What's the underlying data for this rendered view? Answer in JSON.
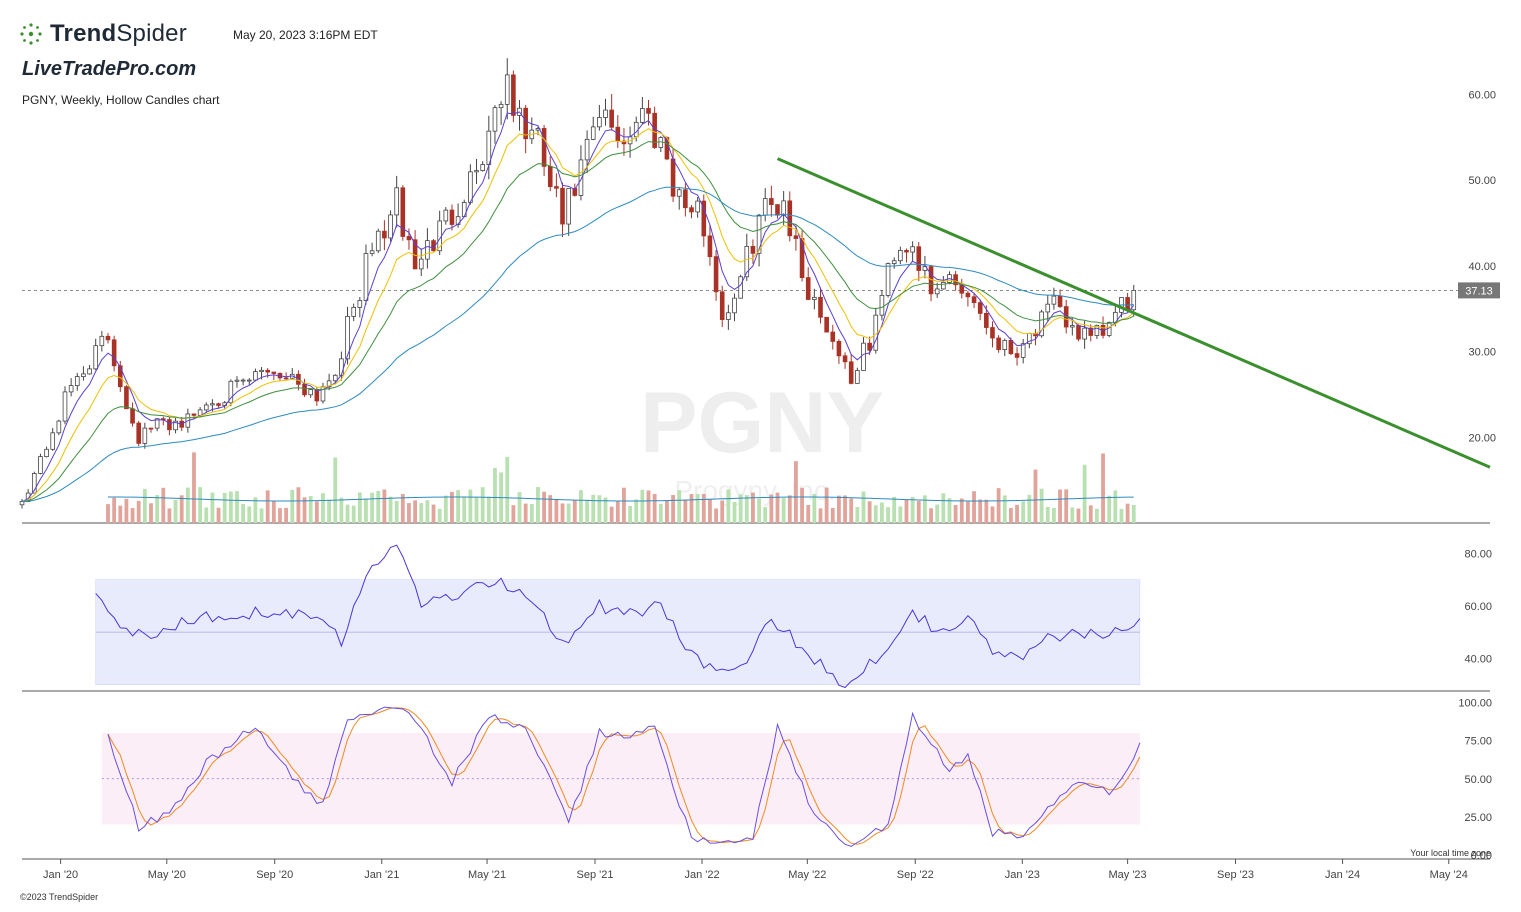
{
  "header": {
    "brand_bold": "Trend",
    "brand_light": "Spider",
    "timestamp": "May 20, 2023 3:16PM EDT",
    "watermark_site": "LiveTradePro.com",
    "chart_desc": "PGNY, Weekly, Hollow Candles chart"
  },
  "footer": {
    "copyright": "©2023 TrendSpider",
    "tz_note": "Your local time zone"
  },
  "colors": {
    "up": "#b8e0b0",
    "down": "#a93226",
    "ema_fast": "#5b3fd6",
    "ema_mid": "#f0c000",
    "ema_slow": "#3f8f3f",
    "sma_long": "#2e8bc0",
    "trendline": "#3c8f2e",
    "rsi_band": "#e8ebfb",
    "stoch_band": "#fbeef7",
    "stoch_k": "#6a4fe0",
    "stoch_d": "#f08a24"
  },
  "chart_data": {
    "type": "candlestick",
    "symbol": "PGNY",
    "watermark_symbol": "PGNY",
    "watermark_name": "Progyny, Inc.",
    "interval": "Weekly",
    "last_price": 37.13,
    "last_price_label": "37.13",
    "price_axis": {
      "range": [
        10,
        67.5
      ],
      "ticks": [
        60,
        50,
        40,
        30,
        20
      ],
      "tick_labels": [
        "60.00",
        "50.00",
        "40.00",
        "30.00",
        "20.00"
      ]
    },
    "rsi_axis": {
      "range": [
        28,
        87
      ],
      "ticks": [
        80,
        60,
        40
      ],
      "tick_labels": [
        "80.00",
        "60.00",
        "40.00"
      ],
      "band": [
        30,
        70
      ],
      "mid": 50
    },
    "stoch_axis": {
      "range": [
        -2,
        103
      ],
      "ticks": [
        100,
        75,
        50,
        25,
        0
      ],
      "tick_labels": [
        "100.00",
        "75.00",
        "50.00",
        "25.00",
        "0.00"
      ],
      "band": [
        20,
        80
      ],
      "mid": 50
    },
    "time_axis": {
      "range": [
        "2019-11-18",
        "2024-06-17"
      ],
      "ticks": [
        "2020-01-01",
        "2020-05-01",
        "2020-09-01",
        "2021-01-01",
        "2021-05-01",
        "2021-09-01",
        "2022-01-01",
        "2022-05-01",
        "2022-09-01",
        "2023-01-01",
        "2023-05-01",
        "2023-09-01",
        "2024-01-01",
        "2024-05-01"
      ],
      "tick_labels": [
        "Jan '20",
        "May '20",
        "Sep '20",
        "Jan '21",
        "May '21",
        "Sep '21",
        "Jan '22",
        "May '22",
        "Sep '22",
        "Jan '23",
        "May '23",
        "Sep '23",
        "Jan '24",
        "May '24"
      ]
    },
    "trendline": {
      "from": [
        "2022-03-28",
        52.5
      ],
      "to": [
        "2024-06-17",
        16.5
      ]
    },
    "weekly_close_anchors": [
      [
        "2019-11-18",
        12.5
      ],
      [
        "2019-12-16",
        19
      ],
      [
        "2020-01-13",
        26
      ],
      [
        "2020-02-03",
        29
      ],
      [
        "2020-02-24",
        31.5
      ],
      [
        "2020-03-16",
        24
      ],
      [
        "2020-03-30",
        20
      ],
      [
        "2020-04-20",
        21.5
      ],
      [
        "2020-05-25",
        22
      ],
      [
        "2020-06-22",
        24.5
      ],
      [
        "2020-07-27",
        26
      ],
      [
        "2020-08-24",
        28
      ],
      [
        "2020-09-21",
        27
      ],
      [
        "2020-10-19",
        25
      ],
      [
        "2020-11-09",
        28
      ],
      [
        "2020-11-30",
        35
      ],
      [
        "2020-12-21",
        42
      ],
      [
        "2021-01-18",
        47
      ],
      [
        "2021-02-08",
        40
      ],
      [
        "2021-03-08",
        44
      ],
      [
        "2021-04-05",
        49
      ],
      [
        "2021-04-26",
        53
      ],
      [
        "2021-05-17",
        61
      ],
      [
        "2021-06-07",
        57
      ],
      [
        "2021-06-28",
        54
      ],
      [
        "2021-07-26",
        45
      ],
      [
        "2021-08-16",
        51
      ],
      [
        "2021-09-06",
        57
      ],
      [
        "2021-10-04",
        55
      ],
      [
        "2021-10-25",
        58
      ],
      [
        "2021-11-15",
        55
      ],
      [
        "2021-12-06",
        48
      ],
      [
        "2022-01-03",
        45
      ],
      [
        "2022-01-24",
        34
      ],
      [
        "2022-02-14",
        38
      ],
      [
        "2022-03-07",
        46
      ],
      [
        "2022-04-04",
        48
      ],
      [
        "2022-04-25",
        39
      ],
      [
        "2022-05-23",
        33
      ],
      [
        "2022-06-20",
        27
      ],
      [
        "2022-07-11",
        31
      ],
      [
        "2022-08-08",
        42
      ],
      [
        "2022-08-29",
        43
      ],
      [
        "2022-09-19",
        36
      ],
      [
        "2022-10-10",
        39
      ],
      [
        "2022-11-07",
        36
      ],
      [
        "2022-11-28",
        32
      ],
      [
        "2022-12-19",
        30
      ],
      [
        "2023-01-09",
        32
      ],
      [
        "2023-02-06",
        35
      ],
      [
        "2023-02-27",
        33
      ],
      [
        "2023-03-20",
        31
      ],
      [
        "2023-04-10",
        33
      ],
      [
        "2023-05-08",
        37.13
      ]
    ],
    "rsi_anchors": [
      [
        "2020-02-10",
        67
      ],
      [
        "2020-03-16",
        50
      ],
      [
        "2020-04-13",
        48
      ],
      [
        "2020-05-25",
        55
      ],
      [
        "2020-07-06",
        57
      ],
      [
        "2020-08-31",
        58
      ],
      [
        "2020-10-26",
        57
      ],
      [
        "2020-11-16",
        47
      ],
      [
        "2020-12-14",
        70
      ],
      [
        "2021-01-18",
        85
      ],
      [
        "2021-02-15",
        61
      ],
      [
        "2021-04-12",
        66
      ],
      [
        "2021-05-17",
        70
      ],
      [
        "2021-06-28",
        60
      ],
      [
        "2021-07-26",
        46
      ],
      [
        "2021-09-06",
        60
      ],
      [
        "2021-10-18",
        57
      ],
      [
        "2021-11-15",
        60
      ],
      [
        "2021-12-20",
        42
      ],
      [
        "2022-01-24",
        34
      ],
      [
        "2022-02-21",
        38
      ],
      [
        "2022-03-21",
        55
      ],
      [
        "2022-04-25",
        44
      ],
      [
        "2022-06-13",
        30
      ],
      [
        "2022-07-25",
        42
      ],
      [
        "2022-08-29",
        58
      ],
      [
        "2022-09-26",
        51
      ],
      [
        "2022-10-31",
        55
      ],
      [
        "2022-11-28",
        43
      ],
      [
        "2023-01-02",
        40
      ],
      [
        "2023-02-06",
        49
      ],
      [
        "2023-03-13",
        49
      ],
      [
        "2023-04-10",
        49
      ],
      [
        "2023-05-15",
        56
      ]
    ],
    "stoch_anchors": [
      [
        "2020-02-24",
        80
      ],
      [
        "2020-03-30",
        18
      ],
      [
        "2020-05-04",
        28
      ],
      [
        "2020-06-15",
        60
      ],
      [
        "2020-08-10",
        85
      ],
      [
        "2020-09-21",
        50
      ],
      [
        "2020-10-26",
        32
      ],
      [
        "2020-11-23",
        90
      ],
      [
        "2021-01-04",
        98
      ],
      [
        "2021-02-01",
        96
      ],
      [
        "2021-03-22",
        48
      ],
      [
        "2021-05-03",
        90
      ],
      [
        "2021-06-14",
        85
      ],
      [
        "2021-08-02",
        20
      ],
      [
        "2021-09-06",
        80
      ],
      [
        "2021-10-11",
        78
      ],
      [
        "2021-11-08",
        84
      ],
      [
        "2021-12-20",
        10
      ],
      [
        "2022-01-24",
        6
      ],
      [
        "2022-02-28",
        12
      ],
      [
        "2022-03-28",
        85
      ],
      [
        "2022-05-09",
        25
      ],
      [
        "2022-06-20",
        5
      ],
      [
        "2022-08-01",
        20
      ],
      [
        "2022-08-29",
        90
      ],
      [
        "2022-10-10",
        55
      ],
      [
        "2022-10-31",
        65
      ],
      [
        "2022-11-28",
        15
      ],
      [
        "2023-01-02",
        10
      ],
      [
        "2023-02-06",
        35
      ],
      [
        "2023-03-06",
        50
      ],
      [
        "2023-04-10",
        40
      ],
      [
        "2023-05-15",
        72
      ]
    ]
  }
}
